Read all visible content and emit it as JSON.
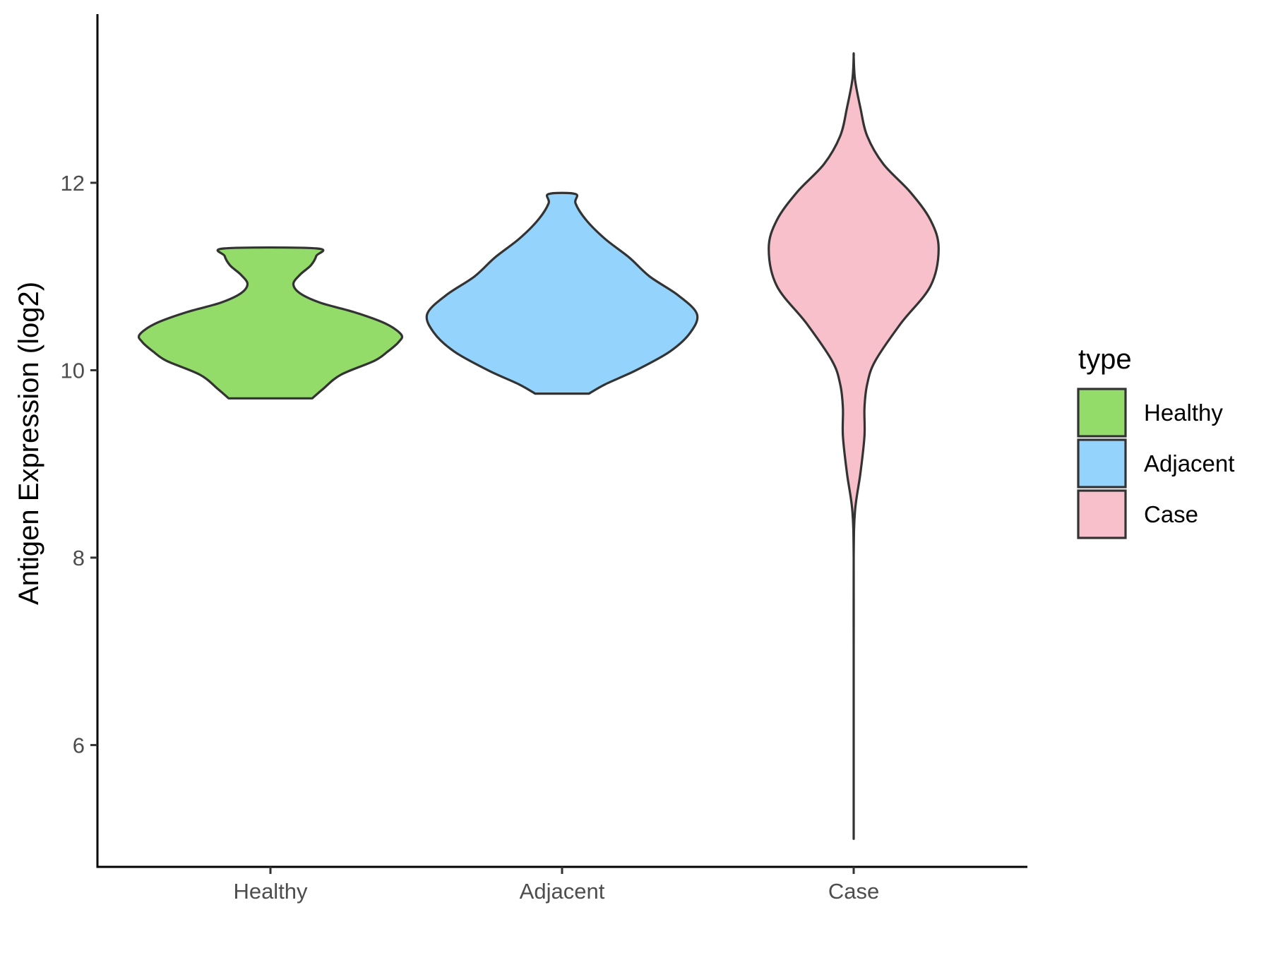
{
  "chart_data": {
    "type": "violin",
    "title": "",
    "xlabel": "",
    "ylabel": "Antigen Expression (log2)",
    "categories": [
      "Healthy",
      "Adjacent",
      "Case"
    ],
    "yticks": [
      6,
      8,
      10,
      12
    ],
    "ylim": [
      4.7,
      13.8
    ],
    "grid": false,
    "legend": {
      "title": "type",
      "position": "right",
      "entries": [
        "Healthy",
        "Adjacent",
        "Case"
      ]
    },
    "colors": {
      "Healthy": "#93dc6a",
      "Adjacent": "#93d3fc",
      "Case": "#f7c0cb",
      "outline": "#333333"
    },
    "series": [
      {
        "name": "Healthy",
        "min": 9.7,
        "max": 11.3,
        "density_profile": [
          [
            9.7,
            0.31
          ],
          [
            9.8,
            0.39
          ],
          [
            9.95,
            0.52
          ],
          [
            10.1,
            0.77
          ],
          [
            10.2,
            0.87
          ],
          [
            10.3,
            0.95
          ],
          [
            10.38,
            0.97
          ],
          [
            10.5,
            0.85
          ],
          [
            10.62,
            0.62
          ],
          [
            10.72,
            0.37
          ],
          [
            10.82,
            0.22
          ],
          [
            10.92,
            0.17
          ],
          [
            11.02,
            0.22
          ],
          [
            11.12,
            0.3
          ],
          [
            11.22,
            0.34
          ],
          [
            11.3,
            0.34
          ]
        ]
      },
      {
        "name": "Adjacent",
        "min": 9.75,
        "max": 11.88,
        "density_profile": [
          [
            9.75,
            0.2
          ],
          [
            9.85,
            0.32
          ],
          [
            10.0,
            0.55
          ],
          [
            10.2,
            0.8
          ],
          [
            10.4,
            0.95
          ],
          [
            10.6,
            1.0
          ],
          [
            10.8,
            0.86
          ],
          [
            11.0,
            0.65
          ],
          [
            11.2,
            0.5
          ],
          [
            11.4,
            0.32
          ],
          [
            11.6,
            0.18
          ],
          [
            11.78,
            0.1
          ],
          [
            11.88,
            0.1
          ]
        ]
      },
      {
        "name": "Case",
        "min": 5.0,
        "max": 13.35,
        "density_profile": [
          [
            5.0,
            0.0
          ],
          [
            6.0,
            0.0
          ],
          [
            7.0,
            0.0
          ],
          [
            8.0,
            0.0
          ],
          [
            8.5,
            0.01
          ],
          [
            8.9,
            0.05
          ],
          [
            9.3,
            0.08
          ],
          [
            9.6,
            0.08
          ],
          [
            9.85,
            0.1
          ],
          [
            10.1,
            0.16
          ],
          [
            10.5,
            0.35
          ],
          [
            10.9,
            0.57
          ],
          [
            11.3,
            0.63
          ],
          [
            11.6,
            0.57
          ],
          [
            11.9,
            0.42
          ],
          [
            12.2,
            0.22
          ],
          [
            12.5,
            0.1
          ],
          [
            12.8,
            0.05
          ],
          [
            13.1,
            0.01
          ],
          [
            13.35,
            0.0
          ]
        ]
      }
    ]
  }
}
